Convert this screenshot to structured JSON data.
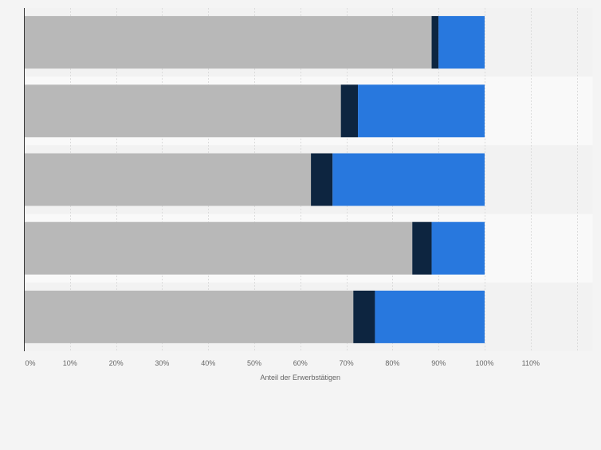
{
  "chart_data": {
    "type": "bar",
    "orientation": "horizontal",
    "stacked": true,
    "xlabel": "Anteil der Erwerbstätigen",
    "xlim": [
      0,
      1.2
    ],
    "xticks": [
      0,
      0.1,
      0.2,
      0.3,
      0.4,
      0.5,
      0.6,
      0.7,
      0.8,
      0.9,
      1.0,
      1.1
    ],
    "xtick_labels": [
      "0%",
      "10%",
      "20%",
      "30%",
      "40%",
      "50%",
      "60%",
      "70%",
      "80%",
      "90%",
      "100%",
      "110%"
    ],
    "grid": true,
    "categories": [
      "",
      "",
      "",
      "",
      ""
    ],
    "series": [
      {
        "color": "#b8b8b8",
        "values": [
          0.885,
          0.688,
          0.623,
          0.843,
          0.715
        ]
      },
      {
        "color": "#0d2540",
        "values": [
          0.015,
          0.037,
          0.047,
          0.042,
          0.047
        ]
      },
      {
        "color": "#2878de",
        "values": [
          0.1,
          0.275,
          0.33,
          0.115,
          0.238
        ]
      }
    ]
  }
}
